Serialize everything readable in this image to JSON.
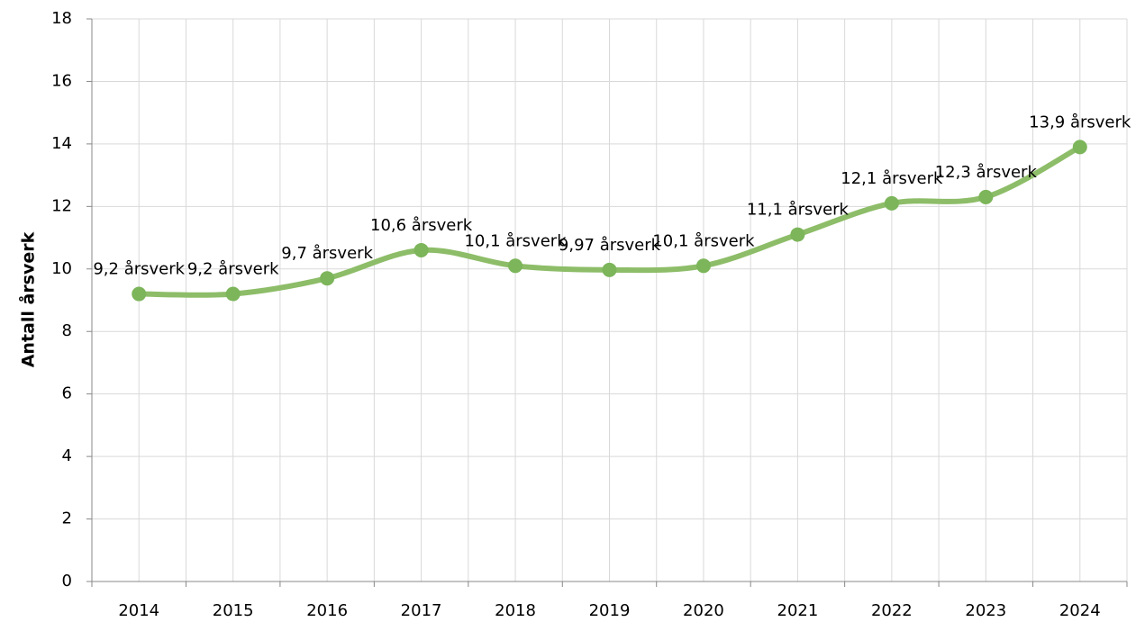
{
  "chart_data": {
    "type": "line",
    "y_label": "Antall årsverk",
    "categories": [
      "2014",
      "2015",
      "2016",
      "2017",
      "2018",
      "2019",
      "2020",
      "2021",
      "2022",
      "2023",
      "2024"
    ],
    "values": [
      9.2,
      9.2,
      9.7,
      10.6,
      10.1,
      9.97,
      10.1,
      11.1,
      12.1,
      12.3,
      13.9
    ],
    "value_labels": [
      "9,2 årsverk",
      "9,2 årsverk",
      "9,7 årsverk",
      "10,6 årsverk",
      "10,1 årsverk",
      "9,97 årsverk",
      "10,1 årsverk",
      "11,1 årsverk",
      "12,1 årsverk",
      "12,3 årsverk",
      "13,9 årsverk"
    ],
    "color": "#8dbd68",
    "marker_color": "#7cb55a",
    "ylim": [
      0,
      18
    ],
    "yticks": [
      0,
      2,
      4,
      6,
      8,
      10,
      12,
      14,
      16,
      18
    ],
    "grid": true,
    "smooth": true
  }
}
